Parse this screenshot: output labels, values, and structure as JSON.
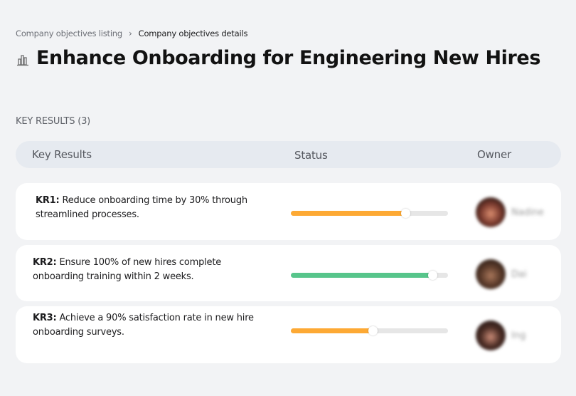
{
  "breadcrumb": {
    "items": [
      {
        "label": "Company objectives listing"
      },
      {
        "label": "Company objectives details"
      }
    ],
    "separator": "›"
  },
  "page": {
    "icon": "building-chart-icon",
    "title": "Enhance Onboarding for Engineering New Hires"
  },
  "key_results_section": {
    "label": "KEY RESULTS (3)",
    "columns": [
      "Key Results",
      "Status",
      "Owner"
    ],
    "rows": [
      {
        "id": "KR1:",
        "text": "Reduce onboarding time by 30% through streamlined processes.",
        "progress": 73,
        "progress_color": "#fda934",
        "owner": "Nadine",
        "avatar_colors": [
          "#7a3a2e",
          "#d98c6e",
          "#2a1a15"
        ]
      },
      {
        "id": "KR2:",
        "text": "Ensure 100% of new hires complete onboarding training within 2 weeks.",
        "progress": 90,
        "progress_color": "#57c58b",
        "owner": "Dai",
        "avatar_colors": [
          "#5a3a2a",
          "#a8765a",
          "#2e1f18"
        ]
      },
      {
        "id": "KR3:",
        "text": "Achieve a 90% satisfaction rate in new hire onboarding surveys.",
        "progress": 52,
        "progress_color": "#fda934",
        "owner": "Ing",
        "avatar_colors": [
          "#4a2c24",
          "#c98a76",
          "#2a1a18"
        ]
      }
    ]
  },
  "colors": {
    "background": "#f2f3f5",
    "header_pill": "#e6eaf0",
    "card": "#ffffff",
    "track": "#e6e6e6"
  }
}
